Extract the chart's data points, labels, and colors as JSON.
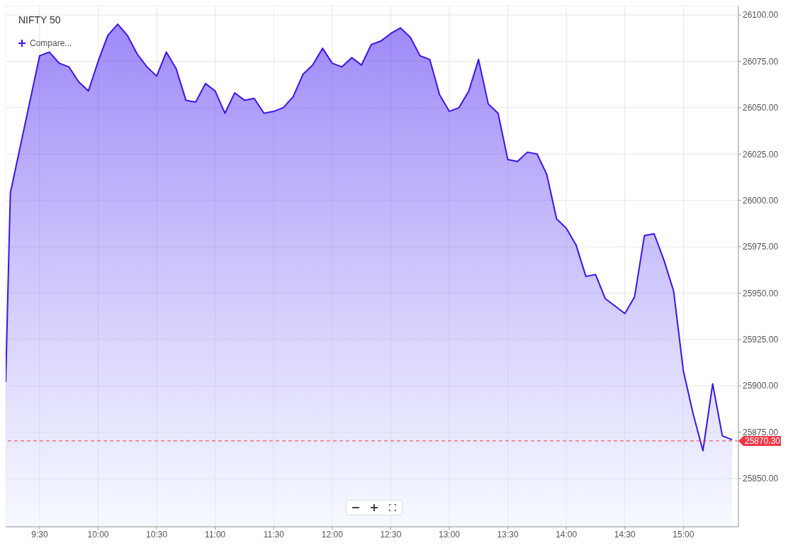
{
  "chart_data": {
    "type": "area",
    "title": "NIFTY 50",
    "annotations": [
      "Compare..."
    ],
    "x": [
      9.21,
      9.25,
      9.5,
      9.583,
      9.667,
      9.75,
      9.833,
      9.917,
      10,
      10.083,
      10.167,
      10.25,
      10.333,
      10.417,
      10.5,
      10.583,
      10.667,
      10.75,
      10.833,
      10.917,
      11,
      11.083,
      11.167,
      11.25,
      11.333,
      11.417,
      11.5,
      11.583,
      11.667,
      11.75,
      11.833,
      11.917,
      12,
      12.083,
      12.167,
      12.25,
      12.333,
      12.417,
      12.5,
      12.583,
      12.667,
      12.75,
      12.833,
      12.917,
      13,
      13.083,
      13.167,
      13.25,
      13.333,
      13.417,
      13.5,
      13.583,
      13.667,
      13.75,
      13.833,
      13.917,
      14,
      14.083,
      14.167,
      14.25,
      14.333,
      14.417,
      14.5,
      14.583,
      14.667,
      14.75,
      14.833,
      14.917,
      15,
      15.083,
      15.167,
      15.25,
      15.333,
      15.417
    ],
    "series": [
      {
        "color": "#3d12f0",
        "values": [
          25902,
          26004,
          26078,
          26080,
          26074,
          26072,
          26064,
          26059,
          26075,
          26089,
          26095,
          26089,
          26079,
          26072,
          26067,
          26080,
          26071,
          26054,
          26053,
          26063,
          26059,
          26047,
          26058,
          26054,
          26055,
          26047,
          26048,
          26050,
          26056,
          26068,
          26073,
          26082,
          26074,
          26072,
          26077,
          26073,
          26084,
          26086,
          26090,
          26093,
          26088,
          26078,
          26076,
          26057,
          26048,
          26050,
          26059,
          26076,
          26052,
          26047,
          26022,
          26021,
          26026,
          26025,
          26014,
          25990,
          25985,
          25976,
          25959,
          25960,
          25947,
          25943,
          25939,
          25948,
          25981,
          25982,
          25968,
          25951,
          25908,
          25885,
          25865,
          25901,
          25873,
          25871
        ]
      }
    ],
    "xlim": [
      9.21,
      15.47
    ],
    "xticks": [
      {
        "value": 9.5,
        "label": "9:30"
      },
      {
        "value": 10,
        "label": "10:00"
      },
      {
        "value": 10.5,
        "label": "10:30"
      },
      {
        "value": 11,
        "label": "11:00"
      },
      {
        "value": 11.5,
        "label": "11:30"
      },
      {
        "value": 12,
        "label": "12:00"
      },
      {
        "value": 12.5,
        "label": "12:30"
      },
      {
        "value": 13,
        "label": "13:00"
      },
      {
        "value": 13.5,
        "label": "13:30"
      },
      {
        "value": 14,
        "label": "14:00"
      },
      {
        "value": 14.5,
        "label": "14:30"
      },
      {
        "value": 15,
        "label": "15:00"
      }
    ],
    "ylim": [
      25824,
      26105
    ],
    "yticks": [
      {
        "value": 25850,
        "label": "25850.00"
      },
      {
        "value": 25875,
        "label": "25875.00"
      },
      {
        "value": 25900,
        "label": "25900.00"
      },
      {
        "value": 25925,
        "label": "25925.00"
      },
      {
        "value": 25950,
        "label": "25950.00"
      },
      {
        "value": 25975,
        "label": "25975.00"
      },
      {
        "value": 26000,
        "label": "26000.00"
      },
      {
        "value": 26025,
        "label": "26025.00"
      },
      {
        "value": 26050,
        "label": "26050.00"
      },
      {
        "value": 26075,
        "label": "26075.00"
      },
      {
        "value": 26100,
        "label": "26100.00"
      }
    ],
    "ref_lines": [
      {
        "axis": "y",
        "value": 25870.3,
        "label": "25870.30",
        "color": "#f23645",
        "line_style": "dashed"
      }
    ],
    "grid": true,
    "legend": false,
    "marker": "none",
    "line_style": "solid"
  }
}
